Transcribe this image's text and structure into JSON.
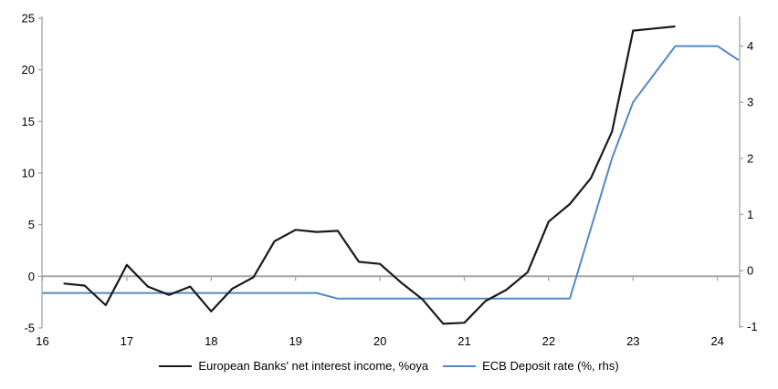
{
  "chart_data": {
    "type": "line",
    "title": "",
    "x_axis": {
      "ticks": [
        16,
        17,
        18,
        19,
        20,
        21,
        22,
        23,
        24
      ],
      "range": [
        16,
        24.3
      ]
    },
    "left_axis": {
      "ticks": [
        25,
        20,
        15,
        10,
        5,
        0,
        -5
      ],
      "range": [
        -5,
        25
      ]
    },
    "right_axis": {
      "ticks": [
        4,
        3,
        2,
        1,
        0,
        -1
      ],
      "range": [
        -1,
        4.45
      ]
    },
    "grid": false,
    "zero_line": true,
    "legend_position": "bottom",
    "series": [
      {
        "name": "European Banks' net interest income, %oya",
        "axis": "left",
        "color": "#1a1a1a",
        "width": 2.2,
        "x": [
          16.25,
          16.5,
          16.75,
          17.0,
          17.25,
          17.5,
          17.75,
          18.0,
          18.25,
          18.5,
          18.75,
          19.0,
          19.25,
          19.5,
          19.75,
          20.0,
          20.25,
          20.5,
          20.75,
          21.0,
          21.25,
          21.5,
          21.75,
          22.0,
          22.25,
          22.5,
          22.75,
          23.0,
          23.25,
          23.5
        ],
        "values": [
          -0.7,
          -0.9,
          -2.8,
          1.1,
          -1.0,
          -1.8,
          -1.0,
          -3.4,
          -1.2,
          -0.1,
          3.4,
          4.5,
          4.3,
          4.4,
          1.4,
          1.2,
          -0.6,
          -2.2,
          -4.6,
          -4.5,
          -2.4,
          -1.3,
          0.4,
          5.3,
          7.0,
          9.5,
          14.0,
          23.8,
          24.0,
          24.2
        ]
      },
      {
        "name": "ECB Deposit rate (%, rhs)",
        "axis": "right",
        "color": "#5289c5",
        "width": 2,
        "x": [
          16.0,
          16.25,
          16.5,
          16.75,
          17.0,
          17.25,
          17.5,
          17.75,
          18.0,
          18.25,
          18.5,
          18.75,
          19.0,
          19.25,
          19.5,
          19.75,
          20.0,
          20.25,
          20.5,
          20.75,
          21.0,
          21.25,
          21.5,
          21.75,
          22.0,
          22.25,
          22.5,
          22.75,
          23.0,
          23.25,
          23.5,
          23.75,
          24.0,
          24.25
        ],
        "values": [
          -0.4,
          -0.4,
          -0.4,
          -0.4,
          -0.4,
          -0.4,
          -0.4,
          -0.4,
          -0.4,
          -0.4,
          -0.4,
          -0.4,
          -0.4,
          -0.4,
          -0.5,
          -0.5,
          -0.5,
          -0.5,
          -0.5,
          -0.5,
          -0.5,
          -0.5,
          -0.5,
          -0.5,
          -0.5,
          -0.5,
          0.75,
          2.0,
          3.0,
          3.5,
          4.0,
          4.0,
          4.0,
          3.75
        ]
      }
    ],
    "colors": {
      "axis_line": "#a6a6a6",
      "zero_line": "#a6a6a6",
      "tick_label": "#000000"
    }
  },
  "legend": {
    "item1": "European Banks' net interest income, %oya",
    "item2": "ECB Deposit rate (%, rhs)"
  }
}
